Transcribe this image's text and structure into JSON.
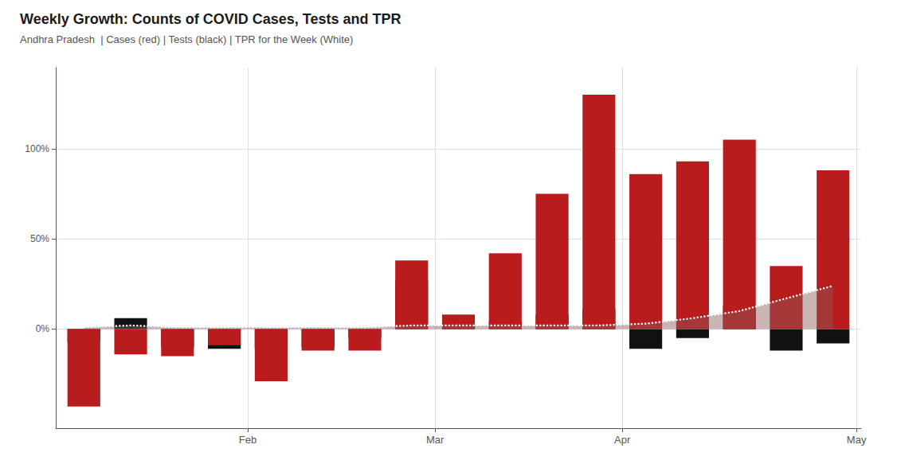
{
  "chart_data": {
    "type": "bar",
    "title": "Weekly Growth: Counts of COVID Cases, Tests and TPR",
    "subtitle": "Andhra Pradesh  | Cases (red) | Tests (black) | TPR for the Week (White)",
    "x": [
      0,
      1,
      2,
      3,
      4,
      5,
      6,
      7,
      8,
      9,
      10,
      11,
      12,
      13,
      14,
      15,
      16
    ],
    "series": [
      {
        "name": "Tests",
        "type": "bar",
        "color": "#111111",
        "values": [
          -0.07,
          0.06,
          -0.1,
          -0.11,
          -0.11,
          -0.1,
          -0.05,
          0.27,
          0.03,
          0.04,
          0.08,
          0.11,
          -0.11,
          -0.05,
          0.13,
          -0.12,
          -0.08
        ]
      },
      {
        "name": "Cases",
        "type": "bar",
        "color": "#b81c1c",
        "values": [
          -0.43,
          -0.14,
          -0.15,
          -0.09,
          -0.29,
          -0.12,
          -0.12,
          0.38,
          0.08,
          0.42,
          0.75,
          1.3,
          0.86,
          0.93,
          1.05,
          0.35,
          0.88
        ]
      },
      {
        "name": "TPR for the Week",
        "type": "area",
        "color": "#ffffff",
        "line_style": "dotted",
        "values": [
          0.01,
          0.02,
          0.01,
          0.01,
          0.01,
          0.01,
          0.01,
          0.02,
          0.02,
          0.02,
          0.02,
          0.02,
          0.03,
          0.06,
          0.1,
          0.17,
          0.24
        ]
      }
    ],
    "xlim": [
      -0.6,
      16.6
    ],
    "xticks": [
      {
        "value": 3.5,
        "label": "Feb"
      },
      {
        "value": 7.5,
        "label": "Mar"
      },
      {
        "value": 11.5,
        "label": "Apr"
      },
      {
        "value": 16.5,
        "label": "May"
      }
    ],
    "ylim": [
      -0.55,
      1.45
    ],
    "yticks": [
      {
        "value": 0,
        "label": "0%"
      },
      {
        "value": 0.5,
        "label": "50%"
      },
      {
        "value": 1.0,
        "label": "100%"
      }
    ],
    "grid": true
  }
}
